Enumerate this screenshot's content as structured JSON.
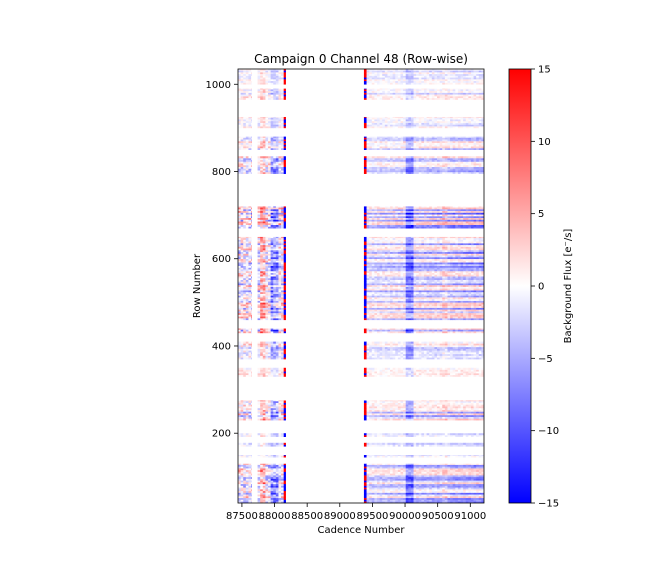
{
  "chart_data": {
    "type": "heatmap",
    "title": "Campaign 0 Channel 48 (Row-wise)",
    "xlabel": "Cadence Number",
    "ylabel": "Row Number",
    "xlim": [
      87440,
      91210
    ],
    "ylim": [
      40,
      1035
    ],
    "x_ticks": [
      87500,
      88000,
      88500,
      89000,
      89500,
      90000,
      90500,
      91000
    ],
    "y_ticks": [
      200,
      400,
      600,
      800,
      1000
    ],
    "grid": false,
    "colorbar": {
      "label": "Background Flux [e⁻/s]",
      "range": [
        -15,
        15
      ],
      "ticks": [
        -15,
        -10,
        -5,
        0,
        5,
        10,
        15
      ],
      "colormap": [
        "#0000ff",
        "#ffffff",
        "#ff0000"
      ]
    },
    "data_gaps_x": [
      [
        88170,
        89370
      ]
    ],
    "data_gap_x_secondary": [
      87650,
      87740
    ],
    "row_bands": [
      {
        "rows": [
          1000,
          1035
        ],
        "level": 0.8
      },
      {
        "rows": [
          965,
          990
        ],
        "level": 1.2
      },
      {
        "rows": [
          900,
          925
        ],
        "level": 1.0
      },
      {
        "rows": [
          850,
          880
        ],
        "level": 1.4
      },
      {
        "rows": [
          795,
          835
        ],
        "level": 2.0
      },
      {
        "rows": [
          670,
          720
        ],
        "level": 2.5
      },
      {
        "rows": [
          460,
          650
        ],
        "level": 2.2
      },
      {
        "rows": [
          430,
          440
        ],
        "level": 3.0
      },
      {
        "rows": [
          370,
          410
        ],
        "level": 1.8
      },
      {
        "rows": [
          330,
          350
        ],
        "level": 1.0
      },
      {
        "rows": [
          230,
          275
        ],
        "level": 2.0
      },
      {
        "rows": [
          192,
          200
        ],
        "level": 1.0
      },
      {
        "rows": [
          170,
          178
        ],
        "level": 1.0
      },
      {
        "rows": [
          145,
          150
        ],
        "level": 1.2
      },
      {
        "rows": [
          40,
          130
        ],
        "level": 2.2
      }
    ],
    "vertical_features": [
      {
        "x": 87980,
        "value": -6
      },
      {
        "x": 87800,
        "value": 5
      },
      {
        "x": 90050,
        "value": -7
      },
      {
        "x": 90600,
        "value": 2
      }
    ]
  }
}
